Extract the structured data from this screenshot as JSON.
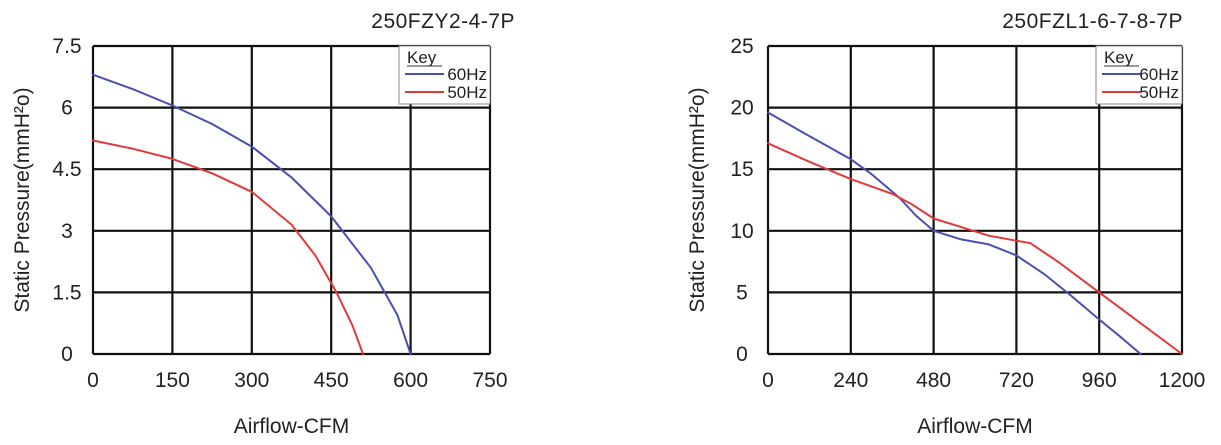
{
  "chart_data": [
    {
      "type": "line",
      "title": "250FZY2-4-7P",
      "xlabel": "Airflow-CFM",
      "ylabel": "Static Pressure(mmH²o)",
      "xlim": [
        0,
        750
      ],
      "ylim": [
        0,
        7.5
      ],
      "x_ticks": [
        "0",
        "150",
        "300",
        "450",
        "600",
        "750"
      ],
      "y_ticks": [
        "0",
        "1.5",
        "3",
        "4.5",
        "6",
        "7.5"
      ],
      "grid": true,
      "legend": {
        "title": "Key",
        "placement": "top-right"
      },
      "series": [
        {
          "name": "60Hz",
          "color": "#4a4fb0",
          "points": [
            [
              0,
              6.8
            ],
            [
              75,
              6.45
            ],
            [
              150,
              6.05
            ],
            [
              225,
              5.6
            ],
            [
              300,
              5.05
            ],
            [
              375,
              4.3
            ],
            [
              450,
              3.35
            ],
            [
              525,
              2.1
            ],
            [
              575,
              0.95
            ],
            [
              600,
              0
            ]
          ]
        },
        {
          "name": "50Hz",
          "color": "#e03a3a",
          "points": [
            [
              0,
              5.2
            ],
            [
              75,
              5.0
            ],
            [
              150,
              4.75
            ],
            [
              225,
              4.4
            ],
            [
              300,
              3.95
            ],
            [
              375,
              3.15
            ],
            [
              420,
              2.4
            ],
            [
              460,
              1.5
            ],
            [
              490,
              0.7
            ],
            [
              510,
              0
            ]
          ]
        }
      ]
    },
    {
      "type": "line",
      "title": "250FZL1-6-7-8-7P",
      "xlabel": "Airflow-CFM",
      "ylabel": "Static Pressure(mmH²o)",
      "xlim": [
        0,
        1200
      ],
      "ylim": [
        0,
        25
      ],
      "x_ticks": [
        "0",
        "240",
        "480",
        "720",
        "960",
        "1200"
      ],
      "y_ticks": [
        "0",
        "5",
        "10",
        "15",
        "20",
        "25"
      ],
      "grid": true,
      "legend": {
        "title": "Key",
        "placement": "top-right"
      },
      "series": [
        {
          "name": "60Hz",
          "color": "#4a4fb0",
          "points": [
            [
              0,
              19.6
            ],
            [
              100,
              18.0
            ],
            [
              240,
              15.8
            ],
            [
              300,
              14.6
            ],
            [
              380,
              12.7
            ],
            [
              430,
              11.2
            ],
            [
              480,
              10.0
            ],
            [
              560,
              9.3
            ],
            [
              640,
              8.9
            ],
            [
              720,
              8.0
            ],
            [
              800,
              6.5
            ],
            [
              880,
              4.7
            ],
            [
              960,
              2.8
            ],
            [
              1030,
              1.2
            ],
            [
              1080,
              0
            ]
          ]
        },
        {
          "name": "50Hz",
          "color": "#e03a3a",
          "points": [
            [
              0,
              17.1
            ],
            [
              120,
              15.6
            ],
            [
              240,
              14.2
            ],
            [
              360,
              13.0
            ],
            [
              420,
              12.1
            ],
            [
              480,
              11.0
            ],
            [
              560,
              10.3
            ],
            [
              640,
              9.6
            ],
            [
              720,
              9.2
            ],
            [
              760,
              9.0
            ],
            [
              840,
              7.5
            ],
            [
              960,
              5.0
            ],
            [
              1080,
              2.5
            ],
            [
              1200,
              0
            ]
          ]
        }
      ]
    }
  ]
}
